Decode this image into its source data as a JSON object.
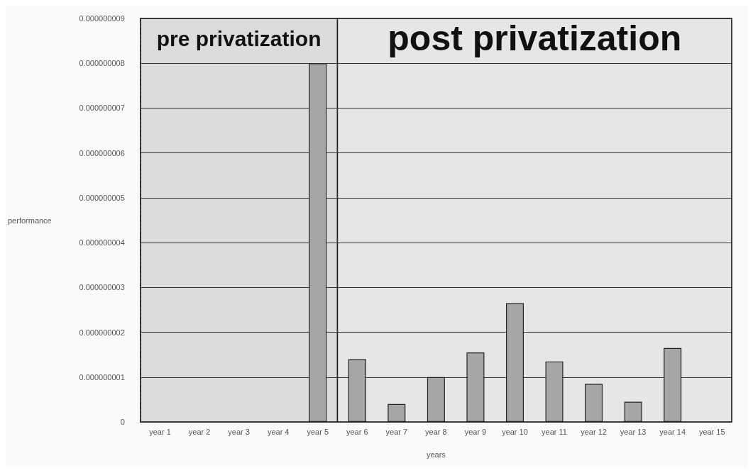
{
  "chart_data": {
    "type": "bar",
    "xlabel": "years",
    "ylabel": "performance",
    "categories": [
      "year 1",
      "year 2",
      "year 3",
      "year 4",
      "year 5",
      "year 6",
      "year 7",
      "year 8",
      "year 9",
      "year 10",
      "year 11",
      "year 12",
      "year 13",
      "year 14",
      "year 15"
    ],
    "values": [
      null,
      null,
      null,
      null,
      8e-09,
      1.4e-09,
      4e-10,
      1e-09,
      1.55e-09,
      2.65e-09,
      1.35e-09,
      8.5e-10,
      4.5e-10,
      1.65e-09,
      null
    ],
    "color": "#a6a6a6",
    "ylim": [
      0,
      9e-09
    ],
    "yticks": [
      0,
      {
        "value": 1e-09,
        "label": "0.000000001"
      },
      {
        "value": 2e-09,
        "label": "0.000000002"
      },
      {
        "value": 3e-09,
        "label": "0.000000003"
      },
      {
        "value": 4e-09,
        "label": "0.000000004"
      },
      {
        "value": 5e-09,
        "label": "0.000000005"
      },
      {
        "value": 6e-09,
        "label": "0.000000006"
      },
      {
        "value": 7e-09,
        "label": "0.000000007"
      },
      {
        "value": 8e-09,
        "label": "0.000000008"
      },
      {
        "value": 9e-09,
        "label": "0.000000009"
      }
    ],
    "bands": [
      {
        "axis": "x",
        "from": "year 1",
        "to": "year 5",
        "label": "pre privatization",
        "color": "#dcdcdc"
      },
      {
        "axis": "x",
        "from": "year 6",
        "to": "year 15",
        "label": "post privatization",
        "color": "#e6e6e6"
      }
    ],
    "grid": "y"
  }
}
